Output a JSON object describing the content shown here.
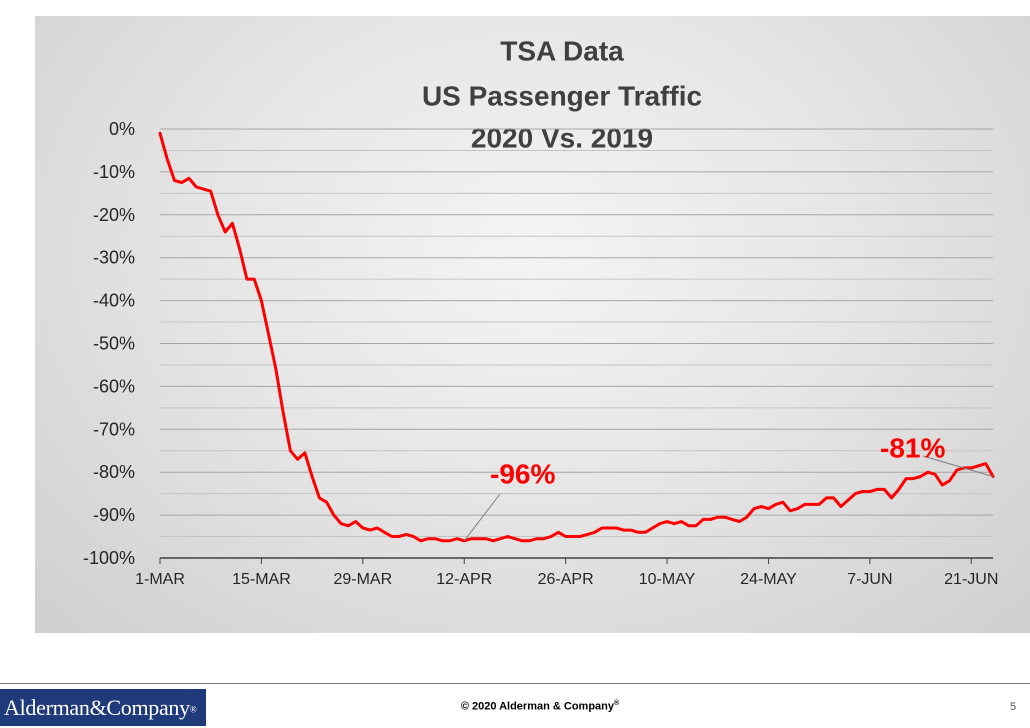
{
  "slide": {
    "logo_text": "Alderman&Company",
    "logo_mark": "®",
    "copyright": "© 2020 Alderman & Company",
    "copyright_mark": "®",
    "page_number": "5"
  },
  "chart_data": {
    "type": "line",
    "title_lines": [
      "TSA Data",
      "US Passenger Traffic",
      "2020 Vs. 2019"
    ],
    "xlabel": "",
    "ylabel": "",
    "ylim": [
      -100,
      0
    ],
    "yticks": [
      0,
      -10,
      -20,
      -30,
      -40,
      -50,
      -60,
      -70,
      -80,
      -90,
      -100
    ],
    "ytick_labels": [
      "0%",
      "-10%",
      "-20%",
      "-30%",
      "-40%",
      "-50%",
      "-60%",
      "-70%",
      "-80%",
      "-90%",
      "-100%"
    ],
    "xlim": [
      "2020-03-01",
      "2020-06-24"
    ],
    "xtick_labels": [
      "1-MAR",
      "15-MAR",
      "29-MAR",
      "12-APR",
      "26-APR",
      "10-MAY",
      "24-MAY",
      "7-JUN",
      "21-JUN"
    ],
    "xtick_dates": [
      "2020-03-01",
      "2020-03-15",
      "2020-03-29",
      "2020-04-12",
      "2020-04-26",
      "2020-05-10",
      "2020-05-24",
      "2020-06-07",
      "2020-06-21"
    ],
    "grid": "horizontal",
    "line_color": "#ff0000",
    "annotation_color": "#ff0000",
    "series": [
      {
        "x": [
          "2020-03-01",
          "2020-03-02",
          "2020-03-03",
          "2020-03-04",
          "2020-03-05",
          "2020-03-06",
          "2020-03-07",
          "2020-03-08",
          "2020-03-09",
          "2020-03-10",
          "2020-03-11",
          "2020-03-12",
          "2020-03-13",
          "2020-03-14",
          "2020-03-15",
          "2020-03-16",
          "2020-03-17",
          "2020-03-18",
          "2020-03-19",
          "2020-03-20",
          "2020-03-21",
          "2020-03-22",
          "2020-03-23",
          "2020-03-24",
          "2020-03-25",
          "2020-03-26",
          "2020-03-27",
          "2020-03-28",
          "2020-03-29",
          "2020-03-30",
          "2020-03-31",
          "2020-04-01",
          "2020-04-02",
          "2020-04-03",
          "2020-04-04",
          "2020-04-05",
          "2020-04-06",
          "2020-04-07",
          "2020-04-08",
          "2020-04-09",
          "2020-04-10",
          "2020-04-11",
          "2020-04-12",
          "2020-04-13",
          "2020-04-14",
          "2020-04-15",
          "2020-04-16",
          "2020-04-17",
          "2020-04-18",
          "2020-04-19",
          "2020-04-20",
          "2020-04-21",
          "2020-04-22",
          "2020-04-23",
          "2020-04-24",
          "2020-04-25",
          "2020-04-26",
          "2020-04-27",
          "2020-04-28",
          "2020-04-29",
          "2020-04-30",
          "2020-05-01",
          "2020-05-02",
          "2020-05-03",
          "2020-05-04",
          "2020-05-05",
          "2020-05-06",
          "2020-05-07",
          "2020-05-08",
          "2020-05-09",
          "2020-05-10",
          "2020-05-11",
          "2020-05-12",
          "2020-05-13",
          "2020-05-14",
          "2020-05-15",
          "2020-05-16",
          "2020-05-17",
          "2020-05-18",
          "2020-05-19",
          "2020-05-20",
          "2020-05-21",
          "2020-05-22",
          "2020-05-23",
          "2020-05-24",
          "2020-05-25",
          "2020-05-26",
          "2020-05-27",
          "2020-05-28",
          "2020-05-29",
          "2020-05-30",
          "2020-05-31",
          "2020-06-01",
          "2020-06-02",
          "2020-06-03",
          "2020-06-04",
          "2020-06-05",
          "2020-06-06",
          "2020-06-07",
          "2020-06-08",
          "2020-06-09",
          "2020-06-10",
          "2020-06-11",
          "2020-06-12",
          "2020-06-13",
          "2020-06-14",
          "2020-06-15",
          "2020-06-16",
          "2020-06-17",
          "2020-06-18",
          "2020-06-19",
          "2020-06-20",
          "2020-06-21",
          "2020-06-22",
          "2020-06-23",
          "2020-06-24"
        ],
        "values": [
          -1,
          -7,
          -12,
          -12.5,
          -11.5,
          -13.5,
          -14,
          -14.5,
          -20,
          -24,
          -22,
          -28,
          -35,
          -35,
          -40,
          -48,
          -56,
          -66,
          -75,
          -77,
          -75.5,
          -81,
          -86,
          -87,
          -90,
          -92,
          -92.5,
          -91.5,
          -93,
          -93.5,
          -93,
          -94,
          -95,
          -95,
          -94.5,
          -95,
          -96,
          -95.5,
          -95.5,
          -96,
          -96,
          -95.5,
          -96,
          -95.5,
          -95.5,
          -95.5,
          -96,
          -95.5,
          -95,
          -95.5,
          -96,
          -96,
          -95.5,
          -95.5,
          -95,
          -94,
          -95,
          -95,
          -95,
          -94.5,
          -94,
          -93,
          -93,
          -93,
          -93.5,
          -93.5,
          -94,
          -94,
          -93,
          -92,
          -91.5,
          -92,
          -91.5,
          -92.5,
          -92.5,
          -91,
          -91,
          -90.5,
          -90.5,
          -91,
          -91.5,
          -90.5,
          -88.5,
          -88,
          -88.5,
          -87.5,
          -87,
          -89,
          -88.5,
          -87.5,
          -87.5,
          -87.5,
          -86,
          -86,
          -88,
          -86.5,
          -85,
          -84.5,
          -84.5,
          -84,
          -84,
          -86,
          -84,
          -81.5,
          -81.5,
          -81,
          -80,
          -80.5,
          -83,
          -82,
          -79.5,
          -79,
          -79,
          -78.5,
          -78,
          -81
        ]
      }
    ],
    "annotations": [
      {
        "label": "-96%",
        "point": "2020-04-12",
        "value": -96
      },
      {
        "label": "-81%",
        "point": "2020-06-24",
        "value": -81
      }
    ]
  }
}
